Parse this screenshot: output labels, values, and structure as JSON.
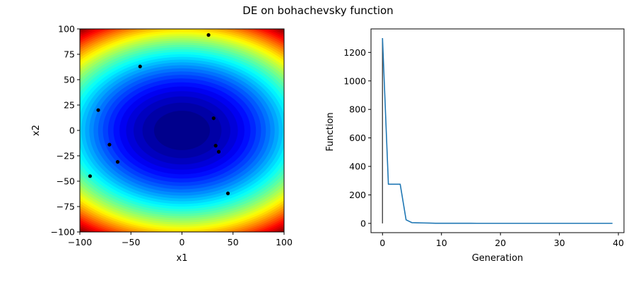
{
  "title": "DE on bohachevsky function",
  "chart_data": [
    {
      "type": "contour",
      "function": "bohachevsky",
      "colormap": "jet",
      "xlabel": "x1",
      "ylabel": "x2",
      "xlim": [
        -100,
        100
      ],
      "ylim": [
        -100,
        100
      ],
      "xticks": [
        -100,
        -50,
        0,
        50,
        100
      ],
      "yticks": [
        -100,
        -75,
        -50,
        -25,
        0,
        25,
        50,
        75,
        100
      ],
      "x_tick_labels": [
        "−100",
        "−50",
        "0",
        "50",
        "100"
      ],
      "y_tick_labels": [
        "−100",
        "−75",
        "−50",
        "−25",
        "0",
        "25",
        "50",
        "75",
        "100"
      ],
      "points": [
        {
          "x": 26,
          "y": 94
        },
        {
          "x": -41,
          "y": 63
        },
        {
          "x": -82,
          "y": 20
        },
        {
          "x": 31,
          "y": 12
        },
        {
          "x": -71,
          "y": -14
        },
        {
          "x": 33,
          "y": -15
        },
        {
          "x": 36,
          "y": -21
        },
        {
          "x": -63,
          "y": -31
        },
        {
          "x": -90,
          "y": -45
        },
        {
          "x": 45,
          "y": -62
        }
      ],
      "point_color": "#000000"
    },
    {
      "type": "line",
      "xlabel": "Generation",
      "ylabel": "Function",
      "xlim": [
        -1.95,
        40.95
      ],
      "ylim": [
        -65,
        1365
      ],
      "xticks": [
        0,
        10,
        20,
        30,
        40
      ],
      "yticks": [
        0,
        200,
        400,
        600,
        800,
        1000,
        1200
      ],
      "x_tick_labels": [
        "0",
        "10",
        "20",
        "30",
        "40"
      ],
      "y_tick_labels": [
        "0",
        "200",
        "400",
        "600",
        "800",
        "1000",
        "1200"
      ],
      "series": [
        {
          "color": "#1f77b4",
          "x": [
            0,
            1,
            2,
            3,
            4,
            5,
            6,
            7,
            8,
            9,
            10,
            11,
            12,
            13,
            14,
            15,
            16,
            17,
            18,
            19,
            20,
            21,
            22,
            23,
            24,
            25,
            26,
            27,
            28,
            29,
            30,
            31,
            32,
            33,
            34,
            35,
            36,
            37,
            38,
            39
          ],
          "y": [
            1300,
            275,
            275,
            275,
            25,
            5,
            4,
            3,
            2,
            1,
            1,
            1,
            1,
            1,
            1,
            1,
            0.5,
            0.5,
            0.5,
            0.5,
            0.5,
            0.5,
            0.5,
            0.5,
            0.5,
            0.5,
            0.5,
            0.5,
            0.5,
            0.5,
            0.5,
            0.5,
            0.5,
            0.5,
            0.5,
            0.5,
            0.5,
            0.5,
            0.5,
            0.5
          ]
        }
      ],
      "marker_line": {
        "x": 0,
        "y_from": 0,
        "y_to": 1300,
        "color": "#444444"
      }
    }
  ]
}
